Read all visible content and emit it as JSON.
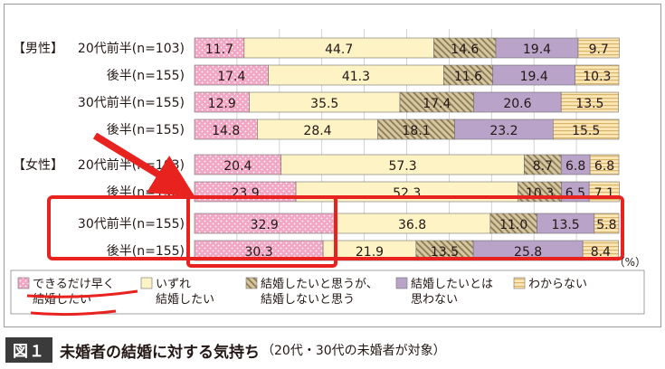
{
  "figure": {
    "number_label": "図１",
    "title": "未婚者の結婚に対する気持ち",
    "subtitle": "（20代・30代の未婚者が対象）"
  },
  "unit_label": "（%）",
  "chart_data": {
    "type": "bar",
    "stacked": true,
    "orientation": "horizontal",
    "percent": true,
    "groups": [
      "【男性】",
      "【女性】"
    ],
    "categories": [
      "20代前半(n=103)",
      "後半(n=155)",
      "30代前半(n=155)",
      "後半(n=155)",
      "20代前半(n=103)",
      "後半(n=155)",
      "30代前半(n=155)",
      "後半(n=155)"
    ],
    "category_group": [
      0,
      0,
      0,
      0,
      1,
      1,
      1,
      1
    ],
    "xlim": [
      0,
      100
    ],
    "grid": true,
    "legend_position": "bottom",
    "series": [
      {
        "name": "できるだけ早く結婚したい",
        "name_lines": [
          "できるだけ早く",
          "結婚したい"
        ],
        "color": "#f2a6c4",
        "pattern": "dots",
        "values": [
          11.7,
          17.4,
          12.9,
          14.8,
          20.4,
          23.9,
          32.9,
          30.3
        ],
        "labels": [
          "11.7",
          "17.4",
          "12.9",
          "14.8",
          "20.4",
          "23.9",
          "32.9",
          "30.3"
        ]
      },
      {
        "name": "いずれ結婚したい",
        "name_lines": [
          "いずれ",
          "結婚したい"
        ],
        "color": "#fdf3c4",
        "pattern": "none",
        "values": [
          44.7,
          41.3,
          35.5,
          28.4,
          57.3,
          52.3,
          36.8,
          21.9
        ],
        "labels": [
          "44.7",
          "41.3",
          "35.5",
          "28.4",
          "57.3",
          "52.3",
          "36.8",
          "21.9"
        ]
      },
      {
        "name": "結婚したいと思うが、結婚しないと思う",
        "name_lines": [
          "結婚したいと思うが、",
          "結婚しないと思う"
        ],
        "color": "#d4c4a0",
        "pattern": "hatch",
        "values": [
          14.6,
          11.6,
          17.4,
          18.1,
          8.7,
          10.3,
          11.0,
          13.5
        ],
        "labels": [
          "14.6",
          "11.6",
          "17.4",
          "18.1",
          "8.7",
          "10.3",
          "11.0",
          "13.5"
        ]
      },
      {
        "name": "結婚したいとは思わない",
        "name_lines": [
          "結婚したいとは",
          "思わない"
        ],
        "color": "#b9a3c8",
        "pattern": "none",
        "values": [
          19.4,
          19.4,
          20.6,
          23.2,
          6.8,
          6.5,
          13.5,
          25.8
        ],
        "labels": [
          "19.4",
          "19.4",
          "20.6",
          "23.2",
          "6.8",
          "6.5",
          "13.5",
          "25.8"
        ]
      },
      {
        "name": "わからない",
        "name_lines": [
          "わからない"
        ],
        "color": "#fbe3ad",
        "pattern": "lines",
        "values": [
          9.7,
          10.3,
          13.5,
          15.5,
          6.8,
          7.1,
          5.8,
          8.4
        ],
        "labels": [
          "9.7",
          "10.3",
          "13.5",
          "15.5",
          "6.8",
          "7.1",
          "5.8",
          "8.4"
        ]
      }
    ]
  },
  "annotation": {
    "highlight_color": "#e8231f",
    "arrow_color": "#e8231f",
    "highlighted_rows": [
      6,
      7
    ],
    "highlighted_series": 0
  }
}
